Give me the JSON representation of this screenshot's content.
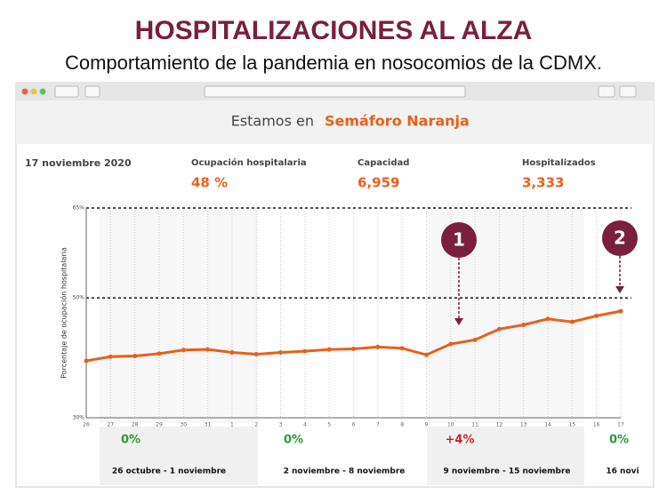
{
  "header": {
    "title": "HOSPITALIZACIONES AL ALZA",
    "subtitle": "Comportamiento de la pandemia en nosocomios de la CDMX."
  },
  "banner": {
    "prefix": "Estamos en",
    "status": "Semáforo Naranja"
  },
  "date": "17 noviembre 2020",
  "stats": [
    {
      "label": "Ocupación hospitalaria",
      "value": "48 %"
    },
    {
      "label": "Capacidad",
      "value": "6,959"
    },
    {
      "label": "Hospitalizados",
      "value": "3,333"
    }
  ],
  "chart_data": {
    "type": "line",
    "ylabel": "Porcentaje de ocupación hospitalaria",
    "categories": [
      "26",
      "27",
      "28",
      "29",
      "30",
      "31",
      "1",
      "2",
      "3",
      "4",
      "5",
      "6",
      "7",
      "8",
      "9",
      "10",
      "11",
      "12",
      "13",
      "14",
      "15",
      "16",
      "17"
    ],
    "values": [
      39.5,
      40.2,
      40.3,
      40.7,
      41.3,
      41.4,
      40.9,
      40.6,
      40.9,
      41.1,
      41.4,
      41.5,
      41.8,
      41.6,
      40.5,
      42.3,
      43.0,
      44.8,
      45.5,
      46.5,
      46.0,
      47.0,
      47.8
    ],
    "color": "#e8601c",
    "ylim": [
      30,
      65
    ],
    "yticks": [
      {
        "value": 30,
        "label": "30%"
      },
      {
        "value": 50,
        "label": "50%"
      },
      {
        "value": 65,
        "label": "65%"
      }
    ],
    "grid": true,
    "annotations": [
      {
        "text": "1"
      },
      {
        "text": "2"
      }
    ],
    "weeks": [
      {
        "change": "0%",
        "label": "26 octubre - 1 noviembre",
        "color": "#2a9a3a"
      },
      {
        "change": "0%",
        "label": "2 noviembre - 8 noviembre",
        "color": "#2a9a3a"
      },
      {
        "change": "+4%",
        "label": "9 noviembre - 15 noviembre",
        "color": "#c0272d"
      },
      {
        "change": "0%",
        "label": "16 novi",
        "color": "#2a9a3a"
      }
    ]
  }
}
